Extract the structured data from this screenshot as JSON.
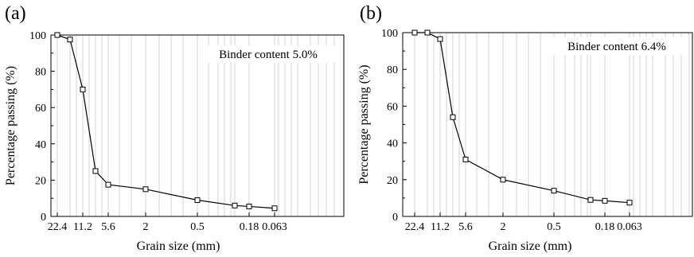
{
  "chart_data": [
    {
      "type": "line",
      "panel_label": "(a)",
      "annotation": "Binder content 5.0%",
      "xlabel": "Grain size (mm)",
      "ylabel": "Percentage passing (%)",
      "x_scale": "log-reversed",
      "ylim": [
        0,
        100
      ],
      "x_tick_labels": [
        "22.4",
        "11.2",
        "5.6",
        "2",
        "0.5",
        "0.18",
        "0.063"
      ],
      "y_tick_labels": [
        "0",
        "20",
        "40",
        "60",
        "80",
        "100"
      ],
      "grid": "vertical-log",
      "series": [
        {
          "x": [
            22.4,
            16,
            11.2,
            8,
            5.6,
            2,
            0.5,
            0.25,
            0.18,
            0.063
          ],
          "y": [
            100,
            97.5,
            70,
            25,
            17.5,
            15,
            9,
            6,
            5.5,
            4.5
          ]
        }
      ]
    },
    {
      "type": "line",
      "panel_label": "(b)",
      "annotation": "Binder content 6.4%",
      "xlabel": "Grain size (mm)",
      "ylabel": "Percentage passing (%)",
      "x_scale": "log-reversed",
      "ylim": [
        0,
        100
      ],
      "x_tick_labels": [
        "22.4",
        "11.2",
        "5.6",
        "2",
        "0.5",
        "0.18",
        "0.063"
      ],
      "y_tick_labels": [
        "0",
        "20",
        "40",
        "60",
        "80",
        "100"
      ],
      "grid": "vertical-log",
      "series": [
        {
          "x": [
            22.4,
            16,
            11.2,
            8,
            5.6,
            2,
            0.5,
            0.25,
            0.18,
            0.063
          ],
          "y": [
            100,
            100,
            96.5,
            54,
            31,
            20,
            14,
            9,
            8.5,
            7.5
          ]
        }
      ]
    }
  ]
}
